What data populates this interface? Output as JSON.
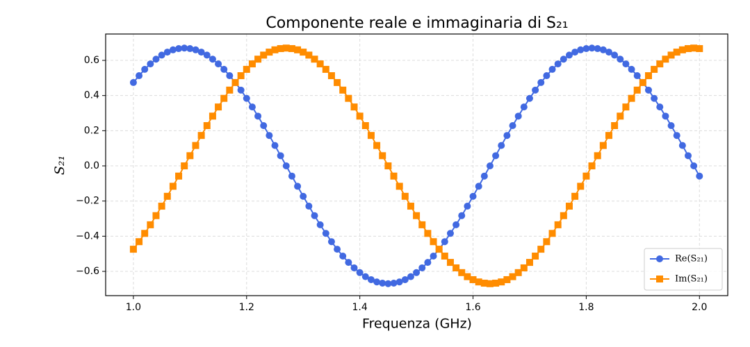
{
  "chart_data": {
    "type": "line",
    "title": "Componente reale e immaginaria di S₂₁",
    "xlabel": "Frequenza (GHz)",
    "ylabel": "S₂₁",
    "x": [
      1,
      1.01,
      1.02,
      1.03,
      1.04,
      1.05,
      1.06,
      1.07,
      1.08,
      1.09,
      1.1,
      1.11,
      1.12,
      1.13,
      1.14,
      1.15,
      1.16,
      1.17,
      1.18,
      1.19,
      1.2,
      1.21,
      1.22,
      1.23,
      1.24,
      1.25,
      1.26,
      1.27,
      1.28,
      1.29,
      1.3,
      1.31,
      1.32,
      1.33,
      1.34,
      1.35,
      1.36,
      1.37,
      1.38,
      1.39,
      1.4,
      1.41,
      1.42,
      1.43,
      1.44,
      1.45,
      1.46,
      1.47,
      1.48,
      1.49,
      1.5,
      1.51,
      1.52,
      1.53,
      1.54,
      1.55,
      1.56,
      1.57,
      1.58,
      1.59,
      1.6,
      1.61,
      1.62,
      1.63,
      1.64,
      1.65,
      1.66,
      1.67,
      1.68,
      1.69,
      1.7,
      1.71,
      1.72,
      1.73,
      1.74,
      1.75,
      1.76,
      1.77,
      1.78,
      1.79,
      1.8,
      1.81,
      1.82,
      1.83,
      1.84,
      1.85,
      1.86,
      1.87,
      1.88,
      1.89,
      1.9,
      1.91,
      1.92,
      1.93,
      1.94,
      1.95,
      1.96,
      1.97,
      1.98,
      1.99,
      2
    ],
    "series": [
      {
        "name": "Re(S₂₁)",
        "color": "#4169e1",
        "marker": "circle",
        "values": [
          0.474,
          0.513,
          0.549,
          0.58,
          0.607,
          0.63,
          0.647,
          0.66,
          0.667,
          0.67,
          0.667,
          0.66,
          0.647,
          0.63,
          0.607,
          0.58,
          0.549,
          0.513,
          0.474,
          0.431,
          0.384,
          0.335,
          0.283,
          0.229,
          0.173,
          0.116,
          0.058,
          0,
          -0.058,
          -0.116,
          -0.173,
          -0.229,
          -0.283,
          -0.335,
          -0.384,
          -0.431,
          -0.474,
          -0.513,
          -0.549,
          -0.58,
          -0.607,
          -0.63,
          -0.647,
          -0.66,
          -0.667,
          -0.67,
          -0.667,
          -0.66,
          -0.647,
          -0.63,
          -0.607,
          -0.58,
          -0.549,
          -0.513,
          -0.474,
          -0.431,
          -0.384,
          -0.335,
          -0.283,
          -0.229,
          -0.173,
          -0.116,
          -0.058,
          0,
          0.058,
          0.116,
          0.173,
          0.229,
          0.283,
          0.335,
          0.384,
          0.431,
          0.474,
          0.513,
          0.549,
          0.58,
          0.607,
          0.63,
          0.647,
          0.66,
          0.667,
          0.67,
          0.667,
          0.66,
          0.647,
          0.63,
          0.607,
          0.58,
          0.549,
          0.513,
          0.474,
          0.431,
          0.384,
          0.335,
          0.283,
          0.229,
          0.173,
          0.116,
          0.058,
          0,
          -0.058
        ]
      },
      {
        "name": "Im(S₂₁)",
        "color": "#ff8c00",
        "marker": "square",
        "values": [
          -0.474,
          -0.431,
          -0.384,
          -0.335,
          -0.283,
          -0.229,
          -0.173,
          -0.116,
          -0.058,
          0,
          0.058,
          0.116,
          0.173,
          0.229,
          0.283,
          0.335,
          0.384,
          0.431,
          0.474,
          0.513,
          0.549,
          0.58,
          0.607,
          0.63,
          0.647,
          0.66,
          0.667,
          0.67,
          0.667,
          0.66,
          0.647,
          0.63,
          0.607,
          0.58,
          0.549,
          0.513,
          0.474,
          0.431,
          0.384,
          0.335,
          0.283,
          0.229,
          0.173,
          0.116,
          0.058,
          0,
          -0.058,
          -0.116,
          -0.173,
          -0.229,
          -0.283,
          -0.335,
          -0.384,
          -0.431,
          -0.474,
          -0.513,
          -0.549,
          -0.58,
          -0.607,
          -0.63,
          -0.647,
          -0.66,
          -0.667,
          -0.67,
          -0.667,
          -0.66,
          -0.647,
          -0.63,
          -0.607,
          -0.58,
          -0.549,
          -0.513,
          -0.474,
          -0.431,
          -0.384,
          -0.335,
          -0.283,
          -0.229,
          -0.173,
          -0.116,
          -0.058,
          0,
          0.058,
          0.116,
          0.173,
          0.229,
          0.283,
          0.335,
          0.384,
          0.431,
          0.474,
          0.513,
          0.549,
          0.58,
          0.607,
          0.63,
          0.647,
          0.66,
          0.667,
          0.67,
          0.667
        ]
      }
    ],
    "xlim": [
      0.951,
      2.05
    ],
    "ylim": [
      -0.738,
      0.75
    ],
    "xticks": [
      {
        "value": 1,
        "label": "1.0"
      },
      {
        "value": 1.2,
        "label": "1.2"
      },
      {
        "value": 1.4,
        "label": "1.4"
      },
      {
        "value": 1.6,
        "label": "1.6"
      },
      {
        "value": 1.8,
        "label": "1.8"
      },
      {
        "value": 2,
        "label": "2.0"
      }
    ],
    "yticks": [
      {
        "value": -0.6,
        "label": "−0.6"
      },
      {
        "value": -0.4,
        "label": "−0.4"
      },
      {
        "value": -0.2,
        "label": "−0.2"
      },
      {
        "value": 0,
        "label": "0.0"
      },
      {
        "value": 0.2,
        "label": "0.2"
      },
      {
        "value": 0.4,
        "label": "0.4"
      },
      {
        "value": 0.6,
        "label": "0.6"
      }
    ],
    "grid": true,
    "legend": "lower-right"
  }
}
